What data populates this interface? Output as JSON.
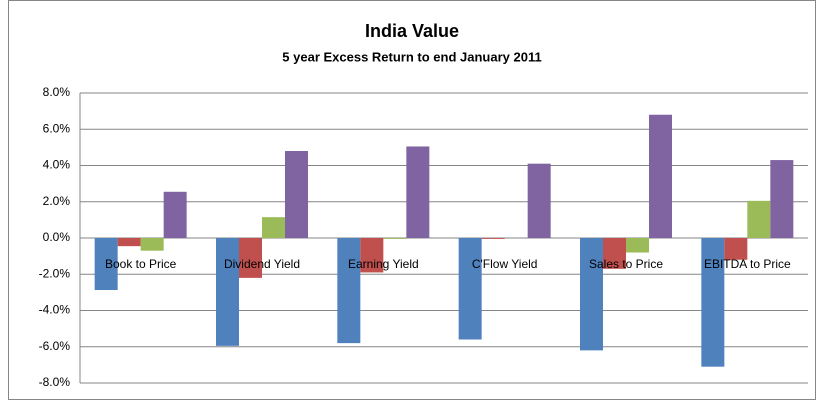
{
  "chart_data": {
    "type": "bar",
    "title": "India Value",
    "subtitle": "5 year Excess Return to end January 2011",
    "categories": [
      "Book to Price",
      "Dividend Yield",
      "Earning Yield",
      "C'Flow Yield",
      "Sales to Price",
      "EBITDA to Price"
    ],
    "series": [
      {
        "color": "#4f81bd",
        "values": [
          -2.87,
          -5.95,
          -5.8,
          -5.6,
          -6.2,
          -7.1
        ]
      },
      {
        "color": "#c0504d",
        "values": [
          -0.45,
          -2.2,
          -1.9,
          -0.05,
          -1.7,
          -1.2
        ]
      },
      {
        "color": "#9bbb59",
        "values": [
          -0.7,
          1.15,
          -0.05,
          0,
          -0.8,
          2.05
        ]
      },
      {
        "color": "#8064a2",
        "values": [
          2.55,
          4.8,
          5.05,
          4.1,
          6.8,
          4.3
        ]
      }
    ],
    "ylim": [
      -8,
      8
    ],
    "yticks": [
      {
        "value": -8,
        "label": "-8.0%"
      },
      {
        "value": -6,
        "label": "-6.0%"
      },
      {
        "value": -4,
        "label": "-4.0%"
      },
      {
        "value": -2,
        "label": "-2.0%"
      },
      {
        "value": 0,
        "label": "0.0%"
      },
      {
        "value": 2,
        "label": "2.0%"
      },
      {
        "value": 4,
        "label": "4.0%"
      },
      {
        "value": 6,
        "label": "6.0%"
      },
      {
        "value": 8,
        "label": "8.0%"
      }
    ],
    "grid": true
  }
}
